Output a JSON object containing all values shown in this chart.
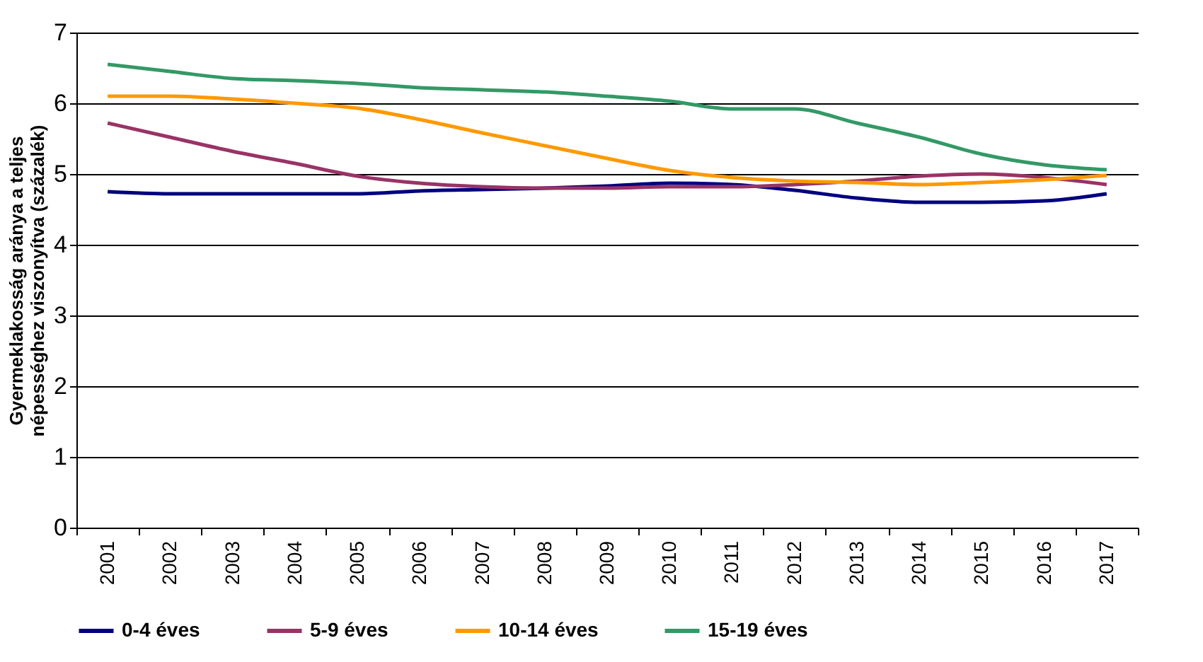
{
  "chart_data": {
    "type": "line",
    "ylabel": "Gyermeklakosság aránya a teljes\nnépességhez viszonyítva (százalék)",
    "categories": [
      "2001",
      "2002",
      "2003",
      "2004",
      "2005",
      "2006",
      "2007",
      "2008",
      "2009",
      "2010",
      "2011",
      "2012",
      "2013",
      "2014",
      "2015",
      "2016",
      "2017"
    ],
    "series": [
      {
        "name": "0-4 éves",
        "color": "#000080",
        "values": [
          4.75,
          4.72,
          4.72,
          4.72,
          4.72,
          4.76,
          4.78,
          4.8,
          4.83,
          4.87,
          4.85,
          4.77,
          4.66,
          4.6,
          4.6,
          4.62,
          4.72
        ]
      },
      {
        "name": "5-9 éves",
        "color": "#993366",
        "values": [
          5.72,
          5.52,
          5.32,
          5.15,
          4.97,
          4.87,
          4.82,
          4.8,
          4.8,
          4.82,
          4.82,
          4.85,
          4.9,
          4.97,
          5.0,
          4.95,
          4.85
        ]
      },
      {
        "name": "10-14 éves",
        "color": "#ff9900",
        "values": [
          6.1,
          6.1,
          6.06,
          6.0,
          5.93,
          5.77,
          5.58,
          5.4,
          5.22,
          5.05,
          4.95,
          4.9,
          4.88,
          4.85,
          4.88,
          4.92,
          4.98
        ]
      },
      {
        "name": "15-19 éves",
        "color": "#339966",
        "values": [
          6.55,
          6.45,
          6.35,
          6.32,
          6.28,
          6.22,
          6.19,
          6.16,
          6.1,
          6.03,
          5.92,
          5.92,
          5.72,
          5.52,
          5.28,
          5.13,
          5.06
        ]
      }
    ],
    "ylim": [
      0,
      7
    ],
    "yticks": [
      0,
      1,
      2,
      3,
      4,
      5,
      6,
      7
    ],
    "grid": "y",
    "legend": "bottom",
    "marker": "none",
    "line_style": "solid"
  }
}
